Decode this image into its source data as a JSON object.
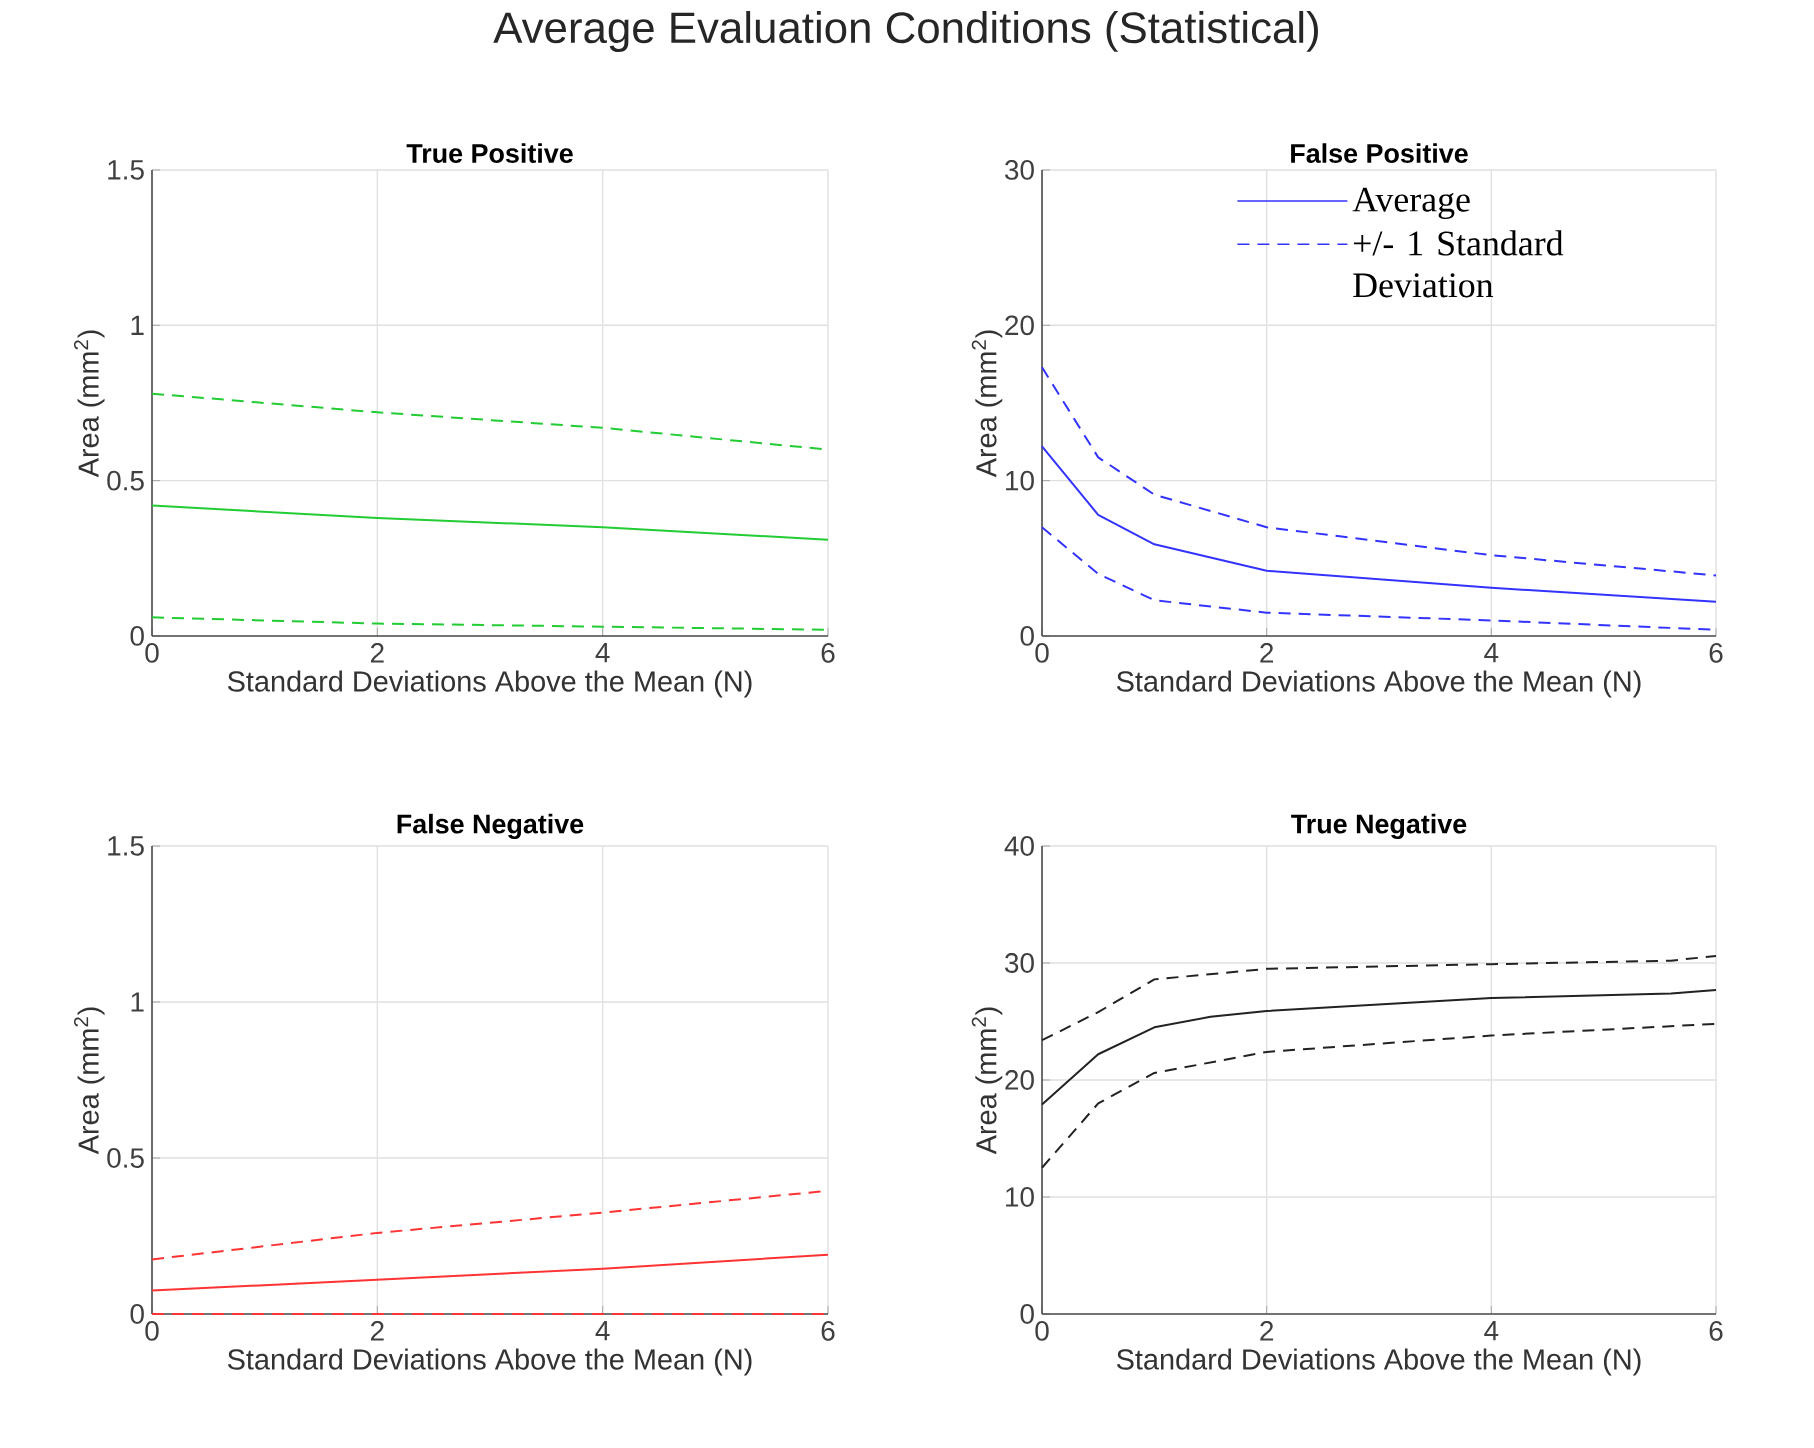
{
  "chart_data": [
    {
      "type": "line",
      "title": "True Positive",
      "ylabel": "Area (mm$^{2}$)",
      "xlabel": "Standard Deviations Above the Mean (N)",
      "annotations": [
        "Average Evaluation Conditions (Statistical)"
      ],
      "xlim": [
        0,
        6
      ],
      "ylim": [
        0,
        1.5
      ],
      "xticks": [
        0,
        2,
        4,
        6
      ],
      "yticks": [
        0,
        0.5,
        1,
        1.5
      ],
      "grid": true,
      "series": [
        {
          "color": "#22cc33",
          "line_style": "dashed",
          "x": [
            0,
            2,
            4,
            6
          ],
          "values": [
            0.78,
            0.72,
            0.67,
            0.6
          ]
        },
        {
          "color": "#22cc33",
          "line_style": "solid",
          "x": [
            0,
            2,
            4,
            6
          ],
          "values": [
            0.42,
            0.38,
            0.35,
            0.31
          ]
        },
        {
          "color": "#22cc33",
          "line_style": "dashed",
          "x": [
            0,
            2,
            4,
            6
          ],
          "values": [
            0.06,
            0.04,
            0.03,
            0.02
          ]
        }
      ]
    },
    {
      "type": "line",
      "title": "False Positive",
      "ylabel": "Area (mm$^{2}$)",
      "xlabel": "Standard Deviations Above the Mean (N)",
      "xlim": [
        0,
        6
      ],
      "ylim": [
        0,
        30
      ],
      "xticks": [
        0,
        2,
        4,
        6
      ],
      "yticks": [
        0,
        10,
        20,
        30
      ],
      "grid": true,
      "legend": "top right",
      "series": [
        {
          "name": "Average",
          "color": "#3333ff",
          "line_style": "solid",
          "x": [
            0,
            0.5,
            1,
            2,
            4,
            6
          ],
          "values": [
            12.2,
            7.8,
            5.9,
            4.2,
            3.1,
            2.2
          ]
        },
        {
          "name": "+/- 1 Standard Deviation",
          "color": "#3333ff",
          "line_style": "dashed",
          "x": [
            0,
            0.5,
            1,
            2,
            4,
            6
          ],
          "values": [
            17.3,
            11.5,
            9.1,
            7.0,
            5.2,
            3.9
          ]
        },
        {
          "color": "#3333ff",
          "line_style": "dashed",
          "x": [
            0,
            0.5,
            1,
            2,
            4,
            6
          ],
          "values": [
            7.0,
            4.0,
            2.3,
            1.5,
            1.0,
            0.4
          ]
        }
      ]
    },
    {
      "type": "line",
      "title": "False Negative",
      "ylabel": "Area (mm$^{2}$)",
      "xlabel": "Standard Deviations Above the Mean (N)",
      "xlim": [
        0,
        6
      ],
      "ylim": [
        0,
        1.5
      ],
      "xticks": [
        0,
        2,
        4,
        6
      ],
      "yticks": [
        0,
        0.5,
        1,
        1.5
      ],
      "grid": true,
      "series": [
        {
          "color": "#ff3333",
          "line_style": "dashed",
          "x": [
            0,
            2,
            4,
            6
          ],
          "values": [
            0.175,
            0.26,
            0.325,
            0.395
          ]
        },
        {
          "color": "#ff3333",
          "line_style": "solid",
          "x": [
            0,
            2,
            4,
            6
          ],
          "values": [
            0.075,
            0.11,
            0.145,
            0.19
          ]
        },
        {
          "color": "#ff3333",
          "line_style": "dashed",
          "x": [
            0,
            2,
            4,
            6
          ],
          "values": [
            0,
            0,
            0,
            0
          ]
        }
      ]
    },
    {
      "type": "line",
      "title": "True Negative",
      "ylabel": "Area (mm$^{2}$)",
      "xlabel": "Standard Deviations Above the Mean (N)",
      "xlim": [
        0,
        6
      ],
      "ylim": [
        0,
        40
      ],
      "xticks": [
        0,
        2,
        4,
        6
      ],
      "yticks": [
        0,
        10,
        20,
        30,
        40
      ],
      "grid": true,
      "series": [
        {
          "color": "#222222",
          "line_style": "dashed",
          "x": [
            0,
            0.5,
            1,
            2,
            4,
            5.6,
            6
          ],
          "values": [
            23.4,
            25.8,
            28.6,
            29.5,
            29.9,
            30.2,
            30.6
          ]
        },
        {
          "color": "#222222",
          "line_style": "solid",
          "x": [
            0,
            0.5,
            1,
            1.5,
            2,
            4,
            5.6,
            6
          ],
          "values": [
            17.9,
            22.2,
            24.5,
            25.4,
            25.9,
            27.0,
            27.4,
            27.7
          ]
        },
        {
          "color": "#222222",
          "line_style": "dashed",
          "x": [
            0,
            0.5,
            1,
            2,
            4,
            6
          ],
          "values": [
            12.5,
            18.0,
            20.6,
            22.4,
            23.8,
            24.8
          ]
        }
      ]
    }
  ]
}
